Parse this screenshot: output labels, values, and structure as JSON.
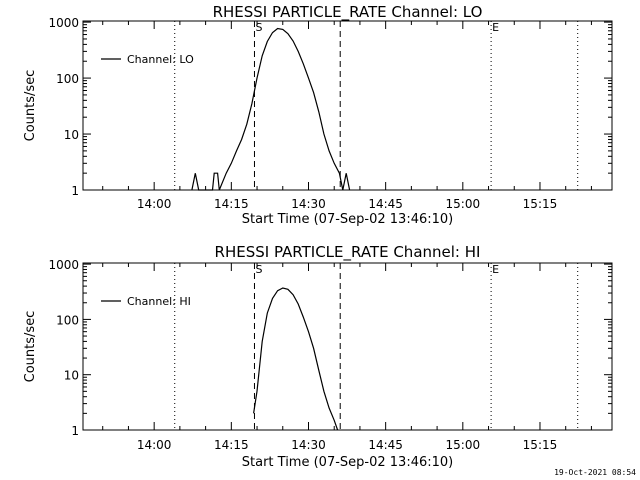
{
  "chart_data": [
    {
      "type": "line",
      "title": "RHESSI PARTICLE_RATE Channel: LO",
      "xlabel": "Start Time (07-Sep-02 13:46:10)",
      "ylabel": "Counts/sec",
      "x_unit": "time of day",
      "xlim": [
        "13:46:10",
        "15:29:00"
      ],
      "ylim": [
        1,
        1000
      ],
      "yscale": "log",
      "x_ticks": [
        "14:00",
        "14:15",
        "14:30",
        "14:45",
        "15:00",
        "15:15"
      ],
      "y_ticks": [
        "1",
        "10",
        "100",
        "1000"
      ],
      "legend": {
        "label": "Channel: LO",
        "position": "top-left"
      },
      "markers": [
        {
          "label": "S",
          "time": "14:19:30",
          "style": "dashed"
        },
        {
          "label": "",
          "time": "14:36:10",
          "style": "dashed"
        },
        {
          "label": "E",
          "time": "15:05:30",
          "style": "dotted"
        },
        {
          "label": "",
          "time": "14:04:00",
          "style": "dotted"
        },
        {
          "label": "",
          "time": "15:22:20",
          "style": "dotted"
        }
      ],
      "series": [
        {
          "name": "Channel: LO",
          "x": [
            "14:07:20",
            "14:08:00",
            "14:08:40",
            "14:09:20",
            "14:11:20",
            "14:11:40",
            "14:12:20",
            "14:12:40",
            "14:14:00",
            "14:15:00",
            "14:16:00",
            "14:17:00",
            "14:18:00",
            "14:19:00",
            "14:20:00",
            "14:21:00",
            "14:22:00",
            "14:23:00",
            "14:24:00",
            "14:25:00",
            "14:26:00",
            "14:27:00",
            "14:28:00",
            "14:29:00",
            "14:30:00",
            "14:31:00",
            "14:32:00",
            "14:33:00",
            "14:34:00",
            "14:35:00",
            "14:36:00",
            "14:36:40",
            "14:37:20",
            "14:38:00"
          ],
          "y": [
            1,
            2,
            1,
            1,
            1,
            2,
            2,
            1,
            2,
            3,
            5,
            8,
            15,
            35,
            100,
            250,
            450,
            650,
            770,
            740,
            620,
            460,
            300,
            180,
            100,
            55,
            25,
            10,
            5,
            3,
            2,
            1,
            2,
            1
          ]
        }
      ]
    },
    {
      "type": "line",
      "title": "RHESSI PARTICLE_RATE Channel: HI",
      "xlabel": "Start Time (07-Sep-02 13:46:10)",
      "ylabel": "Counts/sec",
      "x_unit": "time of day",
      "xlim": [
        "13:46:10",
        "15:29:00"
      ],
      "ylim": [
        1,
        1000
      ],
      "yscale": "log",
      "x_ticks": [
        "14:00",
        "14:15",
        "14:30",
        "14:45",
        "15:00",
        "15:15"
      ],
      "y_ticks": [
        "1",
        "10",
        "100",
        "1000"
      ],
      "legend": {
        "label": "Channel: HI",
        "position": "top-left"
      },
      "markers": [
        {
          "label": "S",
          "time": "14:19:30",
          "style": "dashed"
        },
        {
          "label": "",
          "time": "14:36:10",
          "style": "dashed"
        },
        {
          "label": "E",
          "time": "15:05:30",
          "style": "dotted"
        },
        {
          "label": "",
          "time": "14:04:00",
          "style": "dotted"
        },
        {
          "label": "",
          "time": "15:22:20",
          "style": "dotted"
        }
      ],
      "series": [
        {
          "name": "Channel: HI",
          "x": [
            "14:19:20",
            "14:20:00",
            "14:21:00",
            "14:22:00",
            "14:23:00",
            "14:24:00",
            "14:25:00",
            "14:26:00",
            "14:27:00",
            "14:28:00",
            "14:29:00",
            "14:30:00",
            "14:31:00",
            "14:32:00",
            "14:33:00",
            "14:34:00",
            "14:35:00",
            "14:35:40"
          ],
          "y": [
            2,
            5,
            40,
            130,
            240,
            330,
            370,
            350,
            280,
            190,
            110,
            60,
            30,
            12,
            5,
            2.5,
            1.5,
            1
          ]
        }
      ]
    }
  ],
  "footer": {
    "timestamp": "19-Oct-2021 08:54"
  },
  "colors": {
    "line": "#000000",
    "background": "#ffffff"
  }
}
